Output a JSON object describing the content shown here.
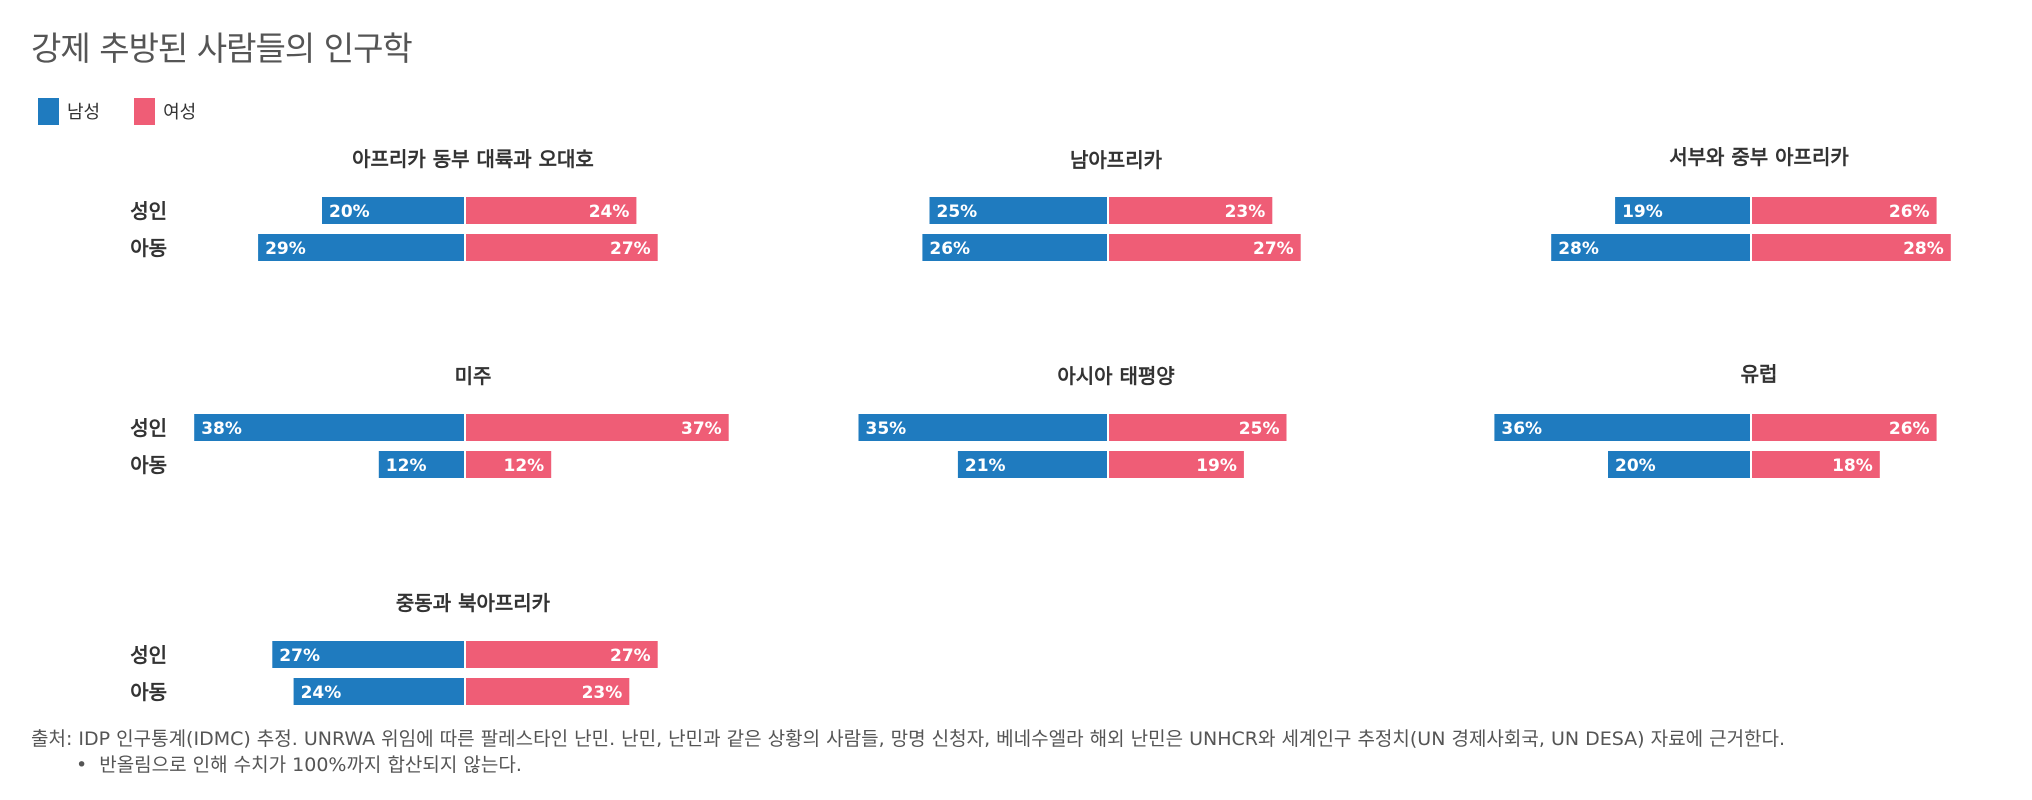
{
  "title": "강제 추방된 사람들의 인구학",
  "legend": [
    {
      "label": "남성",
      "color": "#1f7bbf"
    },
    {
      "label": "여성",
      "color": "#ef5d76"
    }
  ],
  "row_labels": [
    "성인",
    "아동"
  ],
  "chart_data": {
    "type": "bar",
    "orientation": "diverging-horizontal",
    "series": [
      {
        "name": "남성",
        "color": "#1f7bbf"
      },
      {
        "name": "여성",
        "color": "#ef5d76"
      }
    ],
    "categories": [
      "성인",
      "아동"
    ],
    "panels": [
      {
        "title": "아프리카 동부 대륙과 오대호",
        "values": {
          "남성": [
            20,
            29
          ],
          "여성": [
            24,
            27
          ]
        }
      },
      {
        "title": "남아프리카",
        "values": {
          "남성": [
            25,
            26
          ],
          "여성": [
            23,
            27
          ]
        }
      },
      {
        "title": "서부와 중부 아프리카",
        "values": {
          "남성": [
            19,
            28
          ],
          "여성": [
            26,
            28
          ]
        }
      },
      {
        "title": "미주",
        "values": {
          "남성": [
            38,
            12
          ],
          "여성": [
            37,
            12
          ]
        }
      },
      {
        "title": "아시아 태평양",
        "values": {
          "남성": [
            35,
            21
          ],
          "여성": [
            25,
            19
          ]
        }
      },
      {
        "title": "유럽",
        "values": {
          "남성": [
            36,
            20
          ],
          "여성": [
            26,
            18
          ]
        }
      },
      {
        "title": "중동과 북아프리카",
        "values": {
          "남성": [
            27,
            24
          ],
          "여성": [
            27,
            23
          ]
        }
      }
    ],
    "value_suffix": "%"
  },
  "footer": {
    "source": "출처: IDP 인구통계(IDMC) 추정. UNRWA 위임에 따른 팔레스타인 난민. 난민, 난민과 같은 상황의 사람들, 망명 신청자, 베네수엘라 해외 난민은 UNHCR와 세계인구 추정치(UN 경제사회국, UN DESA) 자료에 근거한다.",
    "note": "반올림으로 인해 수치가 100%까지 합산되지 않는다."
  }
}
